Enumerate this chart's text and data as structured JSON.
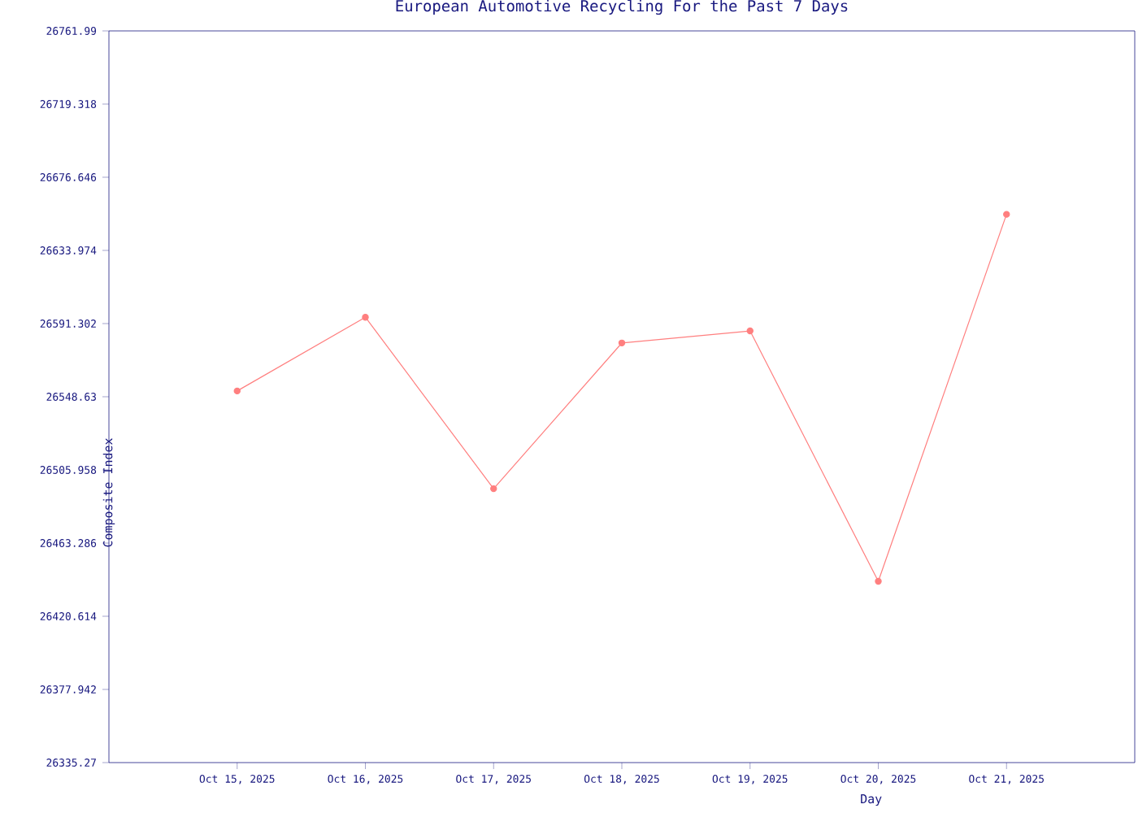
{
  "chart_data": {
    "type": "line",
    "title": "European Automotive Recycling For the Past 7 Days",
    "xlabel": "Day",
    "ylabel": "Composite Index",
    "categories": [
      "Oct 15, 2025",
      "Oct 16, 2025",
      "Oct 17, 2025",
      "Oct 18, 2025",
      "Oct 19, 2025",
      "Oct 20, 2025",
      "Oct 21, 2025"
    ],
    "series": [
      {
        "color": "#ff7f7f",
        "values": [
          26552,
          26595,
          26495,
          26580,
          26587,
          26441,
          26655
        ]
      }
    ],
    "ylim": [
      26335.27,
      26761.99
    ],
    "yticks": [
      26335.27,
      26377.942,
      26420.614,
      26463.286,
      26505.958,
      26548.63,
      26591.302,
      26633.974,
      26676.646,
      26719.318,
      26761.99
    ],
    "grid": false,
    "marker": "circle",
    "line_style": "solid"
  }
}
